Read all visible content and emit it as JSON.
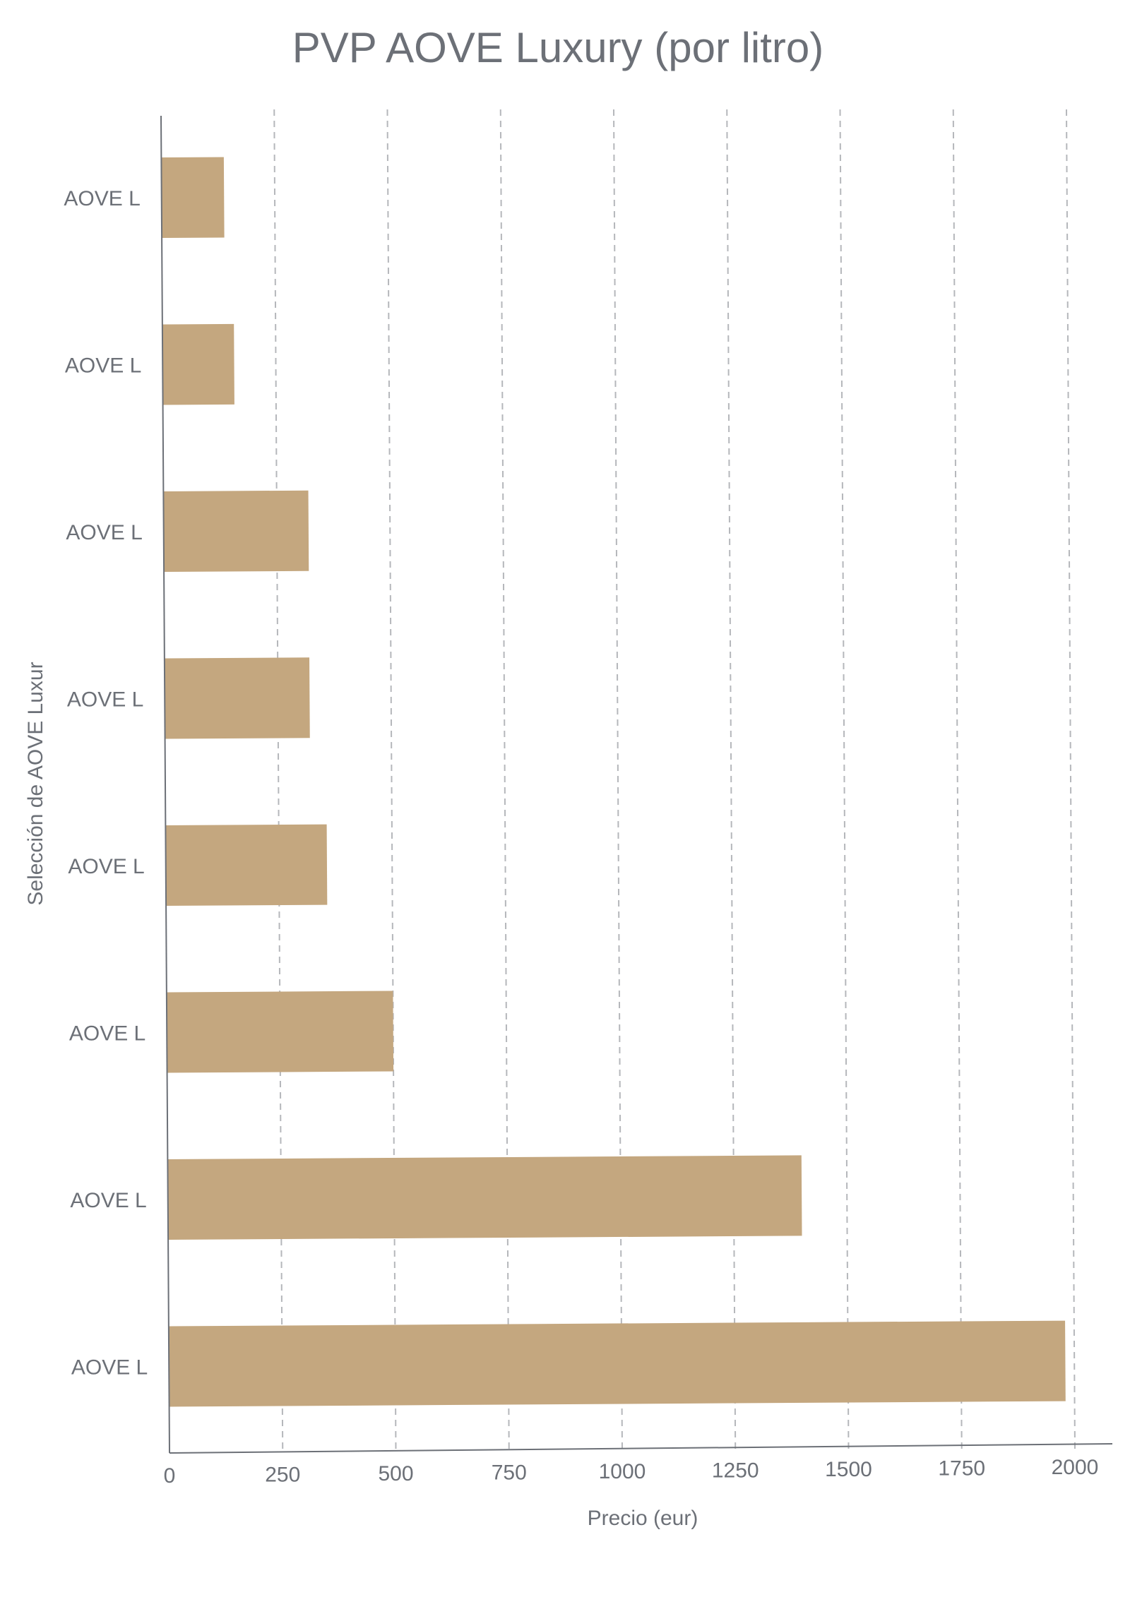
{
  "chart_data": {
    "type": "bar",
    "orientation": "horizontal",
    "title": "PVP AOVE Luxury (por litro)",
    "xlabel": "Precio (eur)",
    "ylabel": "Selección de AOVE Luxur",
    "categories": [
      "AOVE L",
      "AOVE L",
      "AOVE L",
      "AOVE L",
      "AOVE L",
      "AOVE L",
      "AOVE L",
      "AOVE L"
    ],
    "values": [
      138,
      158,
      320,
      320,
      356,
      500,
      1400,
      1980
    ],
    "xlim": [
      0,
      2000
    ],
    "xticks": [
      "0",
      "250",
      "500",
      "750",
      "1000",
      "1250",
      "1500",
      "1750",
      "2000"
    ],
    "grid": "vertical dashed",
    "legend": "none",
    "bar_color": "#c4a77f",
    "axis_color": "#6c7077",
    "grid_color": "#b5b7bb"
  }
}
